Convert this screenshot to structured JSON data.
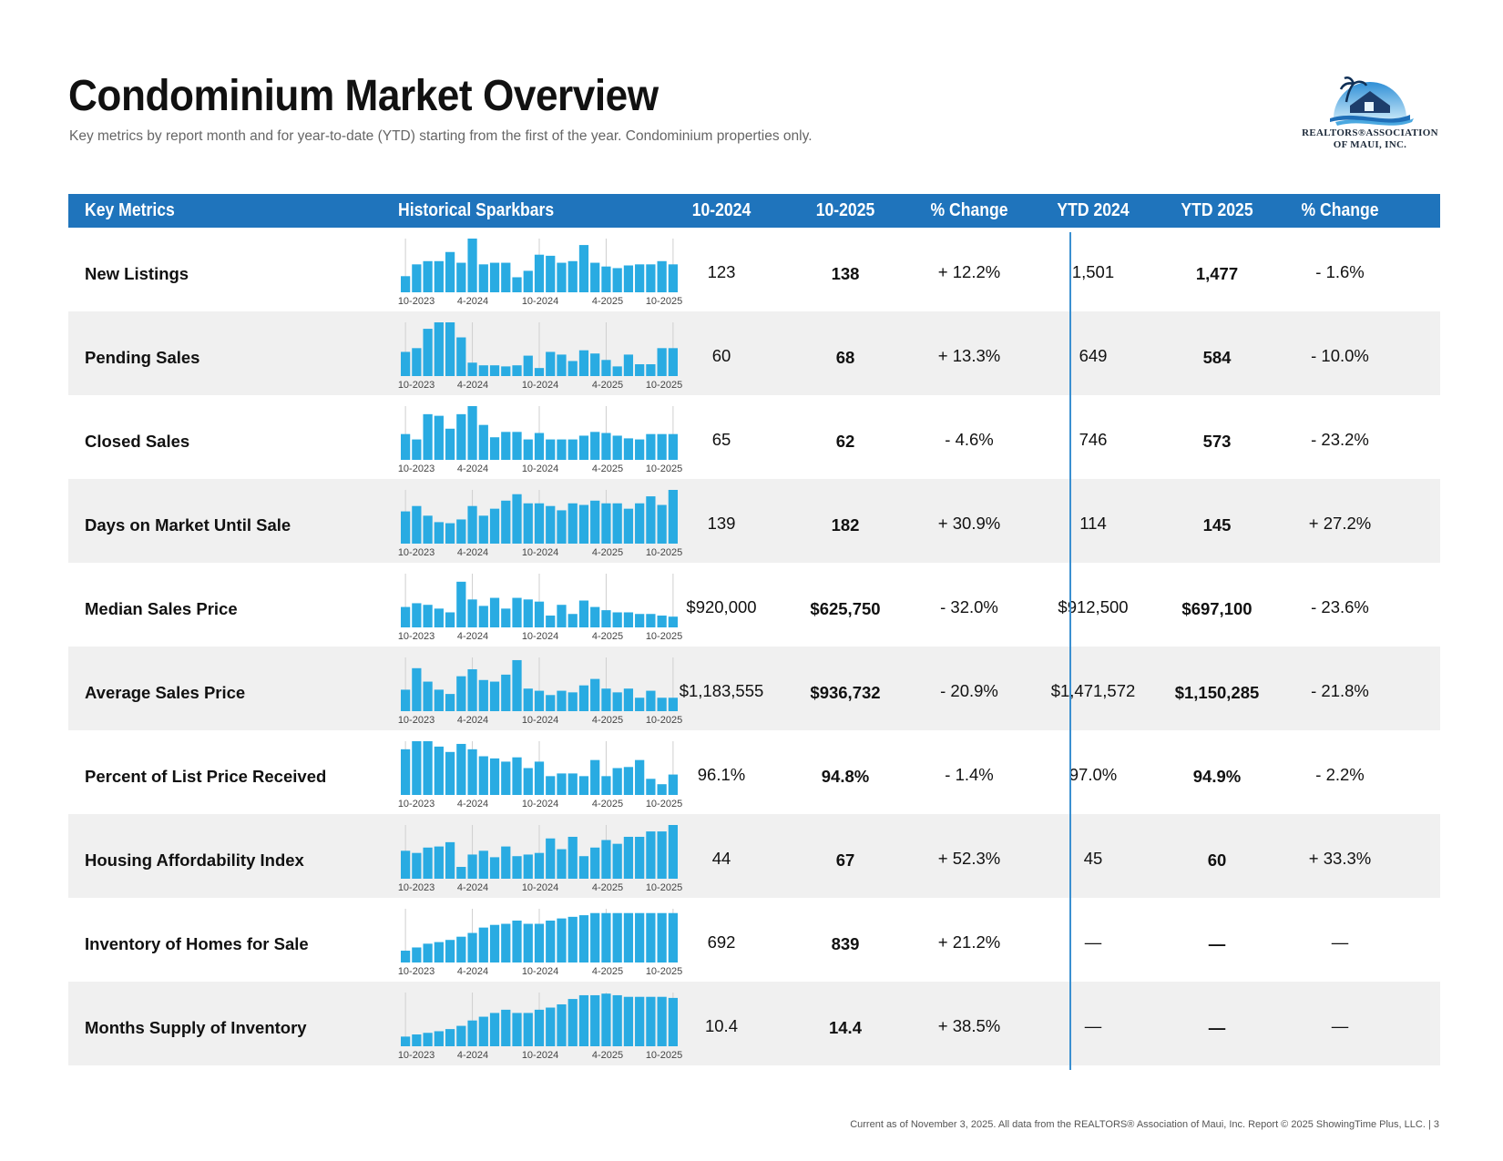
{
  "page": {
    "title": "Condominium Market Overview",
    "subtitle": "Key metrics by report month and for year-to-date (YTD) starting from the first of the year. Condominium properties only.",
    "footer": "Current as of November 3, 2025. All data from the REALTORS® Association of Maui, Inc. Report © 2025 ShowingTime Plus, LLC.  |  3"
  },
  "logo": {
    "line1": "REALTORS®ASSOCIATION",
    "line2": "OF MAUI, INC.",
    "colors": {
      "sky": "#4aa8e0",
      "roof": "#1d3d6b",
      "wave": "#1f6fb8"
    }
  },
  "header": {
    "key_metrics": "Key Metrics",
    "sparkbars": "Historical Sparkbars",
    "col1": "10-2024",
    "col2": "10-2025",
    "col3": "% Change",
    "col4": "YTD 2024",
    "col5": "YTD 2025",
    "col6": "% Change"
  },
  "colors": {
    "header_bg": "#1f74bc",
    "bar": "#29abe2",
    "row_shade": "#f0f0f0",
    "divider": "#3a8fd0"
  },
  "spark_axis_labels": [
    "10-2023",
    "4-2024",
    "10-2024",
    "4-2025",
    "10-2025"
  ],
  "rows": [
    {
      "label": "New Listings",
      "v1": "123",
      "v2": "138",
      "pct1": "+ 12.2%",
      "ytd1": "1,501",
      "ytd2": "1,477",
      "pct2": "- 1.6%",
      "bars": [
        0.3,
        0.52,
        0.58,
        0.58,
        0.75,
        0.55,
        1.0,
        0.52,
        0.55,
        0.55,
        0.28,
        0.4,
        0.7,
        0.68,
        0.55,
        0.58,
        0.88,
        0.55,
        0.48,
        0.45,
        0.5,
        0.52,
        0.52,
        0.58,
        0.52
      ]
    },
    {
      "label": "Pending Sales",
      "v1": "60",
      "v2": "68",
      "pct1": "+ 13.3%",
      "ytd1": "649",
      "ytd2": "584",
      "pct2": "- 10.0%",
      "bars": [
        0.45,
        0.52,
        0.88,
        1.0,
        1.0,
        0.72,
        0.25,
        0.2,
        0.2,
        0.18,
        0.2,
        0.38,
        0.15,
        0.45,
        0.4,
        0.28,
        0.48,
        0.42,
        0.3,
        0.18,
        0.4,
        0.22,
        0.22,
        0.52,
        0.52
      ]
    },
    {
      "label": "Closed Sales",
      "v1": "65",
      "v2": "62",
      "pct1": "- 4.6%",
      "ytd1": "746",
      "ytd2": "573",
      "pct2": "- 23.2%",
      "bars": [
        0.48,
        0.38,
        0.85,
        0.82,
        0.58,
        0.85,
        1.0,
        0.65,
        0.42,
        0.52,
        0.52,
        0.38,
        0.5,
        0.38,
        0.38,
        0.38,
        0.45,
        0.52,
        0.5,
        0.45,
        0.4,
        0.38,
        0.48,
        0.48,
        0.48
      ]
    },
    {
      "label": "Days on Market Until Sale",
      "v1": "139",
      "v2": "182",
      "pct1": "+ 30.9%",
      "ytd1": "114",
      "ytd2": "145",
      "pct2": "+ 27.2%",
      "bars": [
        0.6,
        0.7,
        0.52,
        0.4,
        0.38,
        0.45,
        0.7,
        0.52,
        0.65,
        0.8,
        0.92,
        0.75,
        0.75,
        0.7,
        0.62,
        0.75,
        0.72,
        0.8,
        0.75,
        0.75,
        0.65,
        0.75,
        0.88,
        0.72,
        1.0
      ]
    },
    {
      "label": "Median Sales Price",
      "v1": "$920,000",
      "v2": "$625,750",
      "pct1": "- 32.0%",
      "ytd1": "$912,500",
      "ytd2": "$697,100",
      "pct2": "- 23.6%",
      "bars": [
        0.38,
        0.45,
        0.42,
        0.35,
        0.28,
        0.85,
        0.52,
        0.4,
        0.55,
        0.35,
        0.55,
        0.52,
        0.48,
        0.22,
        0.42,
        0.25,
        0.5,
        0.38,
        0.32,
        0.28,
        0.28,
        0.25,
        0.25,
        0.22,
        0.2
      ]
    },
    {
      "label": "Average Sales Price",
      "v1": "$1,183,555",
      "v2": "$936,732",
      "pct1": "- 20.9%",
      "ytd1": "$1,471,572",
      "ytd2": "$1,150,285",
      "pct2": "- 21.8%",
      "bars": [
        0.4,
        0.8,
        0.55,
        0.4,
        0.32,
        0.65,
        0.78,
        0.58,
        0.55,
        0.68,
        0.95,
        0.42,
        0.38,
        0.3,
        0.38,
        0.35,
        0.48,
        0.6,
        0.42,
        0.35,
        0.42,
        0.25,
        0.38,
        0.25,
        0.25
      ]
    },
    {
      "label": "Percent of List Price Received",
      "v1": "96.1%",
      "v2": "94.8%",
      "pct1": "- 1.4%",
      "ytd1": "97.0%",
      "ytd2": "94.9%",
      "pct2": "- 2.2%",
      "bars": [
        0.85,
        1.0,
        1.0,
        0.9,
        0.8,
        0.95,
        0.85,
        0.72,
        0.68,
        0.62,
        0.7,
        0.5,
        0.62,
        0.35,
        0.4,
        0.4,
        0.35,
        0.65,
        0.35,
        0.5,
        0.52,
        0.65,
        0.3,
        0.2,
        0.38
      ]
    },
    {
      "label": "Housing Affordability Index",
      "v1": "44",
      "v2": "67",
      "pct1": "+ 52.3%",
      "ytd1": "45",
      "ytd2": "60",
      "pct2": "+ 33.3%",
      "bars": [
        0.52,
        0.48,
        0.58,
        0.6,
        0.68,
        0.22,
        0.45,
        0.52,
        0.4,
        0.6,
        0.42,
        0.45,
        0.48,
        0.75,
        0.55,
        0.78,
        0.42,
        0.58,
        0.72,
        0.65,
        0.78,
        0.78,
        0.88,
        0.88,
        1.0
      ]
    },
    {
      "label": "Inventory of Homes for Sale",
      "v1": "692",
      "v2": "839",
      "pct1": "+ 21.2%",
      "ytd1": "—",
      "ytd2": "—",
      "pct2": "—",
      "bars": [
        0.22,
        0.28,
        0.35,
        0.38,
        0.42,
        0.48,
        0.55,
        0.65,
        0.7,
        0.72,
        0.78,
        0.72,
        0.72,
        0.78,
        0.82,
        0.85,
        0.88,
        0.92,
        0.92,
        0.92,
        0.92,
        0.92,
        0.92,
        0.92,
        0.92
      ]
    },
    {
      "label": "Months Supply of Inventory",
      "v1": "10.4",
      "v2": "14.4",
      "pct1": "+ 38.5%",
      "ytd1": "—",
      "ytd2": "—",
      "pct2": "—",
      "bars": [
        0.18,
        0.22,
        0.25,
        0.28,
        0.32,
        0.38,
        0.48,
        0.55,
        0.62,
        0.68,
        0.62,
        0.62,
        0.68,
        0.72,
        0.78,
        0.88,
        0.95,
        0.95,
        0.98,
        0.95,
        0.92,
        0.92,
        0.92,
        0.92,
        0.9
      ]
    }
  ]
}
